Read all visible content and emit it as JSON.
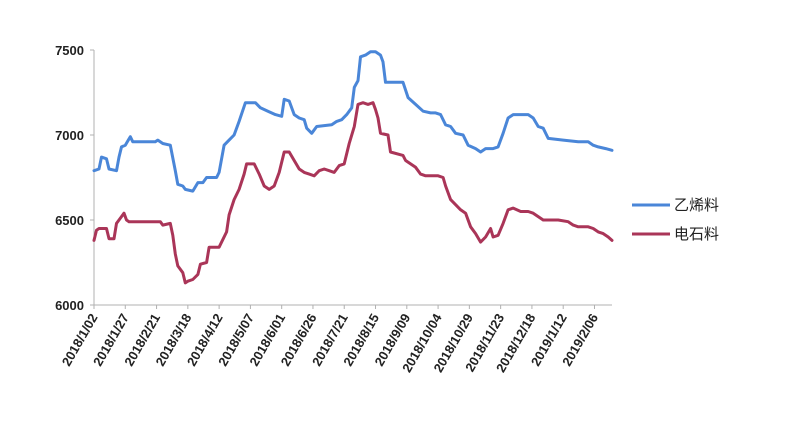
{
  "chart_data": {
    "type": "line",
    "title": "",
    "xlabel": "",
    "ylabel": "",
    "ylim": [
      6000,
      7500
    ],
    "yticks": [
      "6000",
      "6500",
      "7000",
      "7500"
    ],
    "xticks": [
      "2018/1/02",
      "2018/1/27",
      "2018/2/21",
      "2018/3/18",
      "2018/4/12",
      "2018/5/07",
      "2018/6/01",
      "2018/6/26",
      "2018/7/21",
      "2018/8/15",
      "2018/9/09",
      "2018/10/04",
      "2018/10/29",
      "2018/11/23",
      "2018/12/18",
      "2019/1/12",
      "2019/2/06"
    ],
    "xrange": [
      "2018-01-02",
      "2019-02-20"
    ],
    "grid": false,
    "legend_position": "right",
    "series": [
      {
        "name": "乙烯料",
        "color": "#4a86d8",
        "points": [
          [
            "2018-01-02",
            6790
          ],
          [
            "2018-01-06",
            6800
          ],
          [
            "2018-01-08",
            6870
          ],
          [
            "2018-01-12",
            6860
          ],
          [
            "2018-01-14",
            6800
          ],
          [
            "2018-01-20",
            6790
          ],
          [
            "2018-01-22",
            6870
          ],
          [
            "2018-01-24",
            6930
          ],
          [
            "2018-01-27",
            6940
          ],
          [
            "2018-01-31",
            6990
          ],
          [
            "2018-02-02",
            6960
          ],
          [
            "2018-02-20",
            6960
          ],
          [
            "2018-02-22",
            6970
          ],
          [
            "2018-02-26",
            6950
          ],
          [
            "2018-03-04",
            6940
          ],
          [
            "2018-03-08",
            6790
          ],
          [
            "2018-03-10",
            6710
          ],
          [
            "2018-03-14",
            6700
          ],
          [
            "2018-03-16",
            6680
          ],
          [
            "2018-03-22",
            6670
          ],
          [
            "2018-03-26",
            6720
          ],
          [
            "2018-03-30",
            6720
          ],
          [
            "2018-04-02",
            6750
          ],
          [
            "2018-04-10",
            6750
          ],
          [
            "2018-04-12",
            6780
          ],
          [
            "2018-04-16",
            6940
          ],
          [
            "2018-04-20",
            6970
          ],
          [
            "2018-04-24",
            7000
          ],
          [
            "2018-04-28",
            7080
          ],
          [
            "2018-05-03",
            7190
          ],
          [
            "2018-05-11",
            7190
          ],
          [
            "2018-05-15",
            7160
          ],
          [
            "2018-05-21",
            7140
          ],
          [
            "2018-05-27",
            7120
          ],
          [
            "2018-06-01",
            7110
          ],
          [
            "2018-06-03",
            7210
          ],
          [
            "2018-06-07",
            7200
          ],
          [
            "2018-06-11",
            7120
          ],
          [
            "2018-06-15",
            7100
          ],
          [
            "2018-06-19",
            7090
          ],
          [
            "2018-06-21",
            7040
          ],
          [
            "2018-06-25",
            7010
          ],
          [
            "2018-06-29",
            7050
          ],
          [
            "2018-07-11",
            7060
          ],
          [
            "2018-07-15",
            7080
          ],
          [
            "2018-07-19",
            7090
          ],
          [
            "2018-07-23",
            7120
          ],
          [
            "2018-07-27",
            7160
          ],
          [
            "2018-07-29",
            7280
          ],
          [
            "2018-08-01",
            7320
          ],
          [
            "2018-08-03",
            7460
          ],
          [
            "2018-08-07",
            7470
          ],
          [
            "2018-08-11",
            7490
          ],
          [
            "2018-08-15",
            7490
          ],
          [
            "2018-08-19",
            7470
          ],
          [
            "2018-08-21",
            7430
          ],
          [
            "2018-08-23",
            7310
          ],
          [
            "2018-09-06",
            7310
          ],
          [
            "2018-09-10",
            7220
          ],
          [
            "2018-09-16",
            7180
          ],
          [
            "2018-09-22",
            7140
          ],
          [
            "2018-09-28",
            7130
          ],
          [
            "2018-10-02",
            7130
          ],
          [
            "2018-10-06",
            7120
          ],
          [
            "2018-10-10",
            7060
          ],
          [
            "2018-10-14",
            7050
          ],
          [
            "2018-10-18",
            7010
          ],
          [
            "2018-10-24",
            7000
          ],
          [
            "2018-10-28",
            6940
          ],
          [
            "2018-11-03",
            6920
          ],
          [
            "2018-11-07",
            6900
          ],
          [
            "2018-11-11",
            6920
          ],
          [
            "2018-11-17",
            6920
          ],
          [
            "2018-11-21",
            6930
          ],
          [
            "2018-11-25",
            7010
          ],
          [
            "2018-11-29",
            7100
          ],
          [
            "2018-12-03",
            7120
          ],
          [
            "2018-12-15",
            7120
          ],
          [
            "2018-12-19",
            7100
          ],
          [
            "2018-12-23",
            7050
          ],
          [
            "2018-12-27",
            7040
          ],
          [
            "2018-12-31",
            6980
          ],
          [
            "2019-01-12",
            6970
          ],
          [
            "2019-01-24",
            6960
          ],
          [
            "2019-02-01",
            6960
          ],
          [
            "2019-02-05",
            6940
          ],
          [
            "2019-02-09",
            6930
          ],
          [
            "2019-02-15",
            6920
          ],
          [
            "2019-02-20",
            6910
          ]
        ]
      },
      {
        "name": "电石料",
        "color": "#aa3558",
        "points": [
          [
            "2018-01-02",
            6380
          ],
          [
            "2018-01-04",
            6440
          ],
          [
            "2018-01-06",
            6450
          ],
          [
            "2018-01-12",
            6450
          ],
          [
            "2018-01-14",
            6390
          ],
          [
            "2018-01-18",
            6390
          ],
          [
            "2018-01-20",
            6480
          ],
          [
            "2018-01-24",
            6520
          ],
          [
            "2018-01-26",
            6540
          ],
          [
            "2018-01-28",
            6500
          ],
          [
            "2018-01-30",
            6490
          ],
          [
            "2018-02-24",
            6490
          ],
          [
            "2018-02-26",
            6470
          ],
          [
            "2018-03-04",
            6480
          ],
          [
            "2018-03-06",
            6410
          ],
          [
            "2018-03-08",
            6300
          ],
          [
            "2018-03-10",
            6230
          ],
          [
            "2018-03-14",
            6190
          ],
          [
            "2018-03-16",
            6130
          ],
          [
            "2018-03-18",
            6140
          ],
          [
            "2018-03-22",
            6150
          ],
          [
            "2018-03-26",
            6180
          ],
          [
            "2018-03-28",
            6240
          ],
          [
            "2018-04-02",
            6250
          ],
          [
            "2018-04-04",
            6340
          ],
          [
            "2018-04-12",
            6340
          ],
          [
            "2018-04-18",
            6430
          ],
          [
            "2018-04-20",
            6530
          ],
          [
            "2018-04-24",
            6620
          ],
          [
            "2018-04-28",
            6680
          ],
          [
            "2018-05-02",
            6770
          ],
          [
            "2018-05-04",
            6830
          ],
          [
            "2018-05-10",
            6830
          ],
          [
            "2018-05-14",
            6770
          ],
          [
            "2018-05-18",
            6700
          ],
          [
            "2018-05-22",
            6680
          ],
          [
            "2018-05-26",
            6700
          ],
          [
            "2018-05-30",
            6780
          ],
          [
            "2018-06-03",
            6900
          ],
          [
            "2018-06-07",
            6900
          ],
          [
            "2018-06-11",
            6850
          ],
          [
            "2018-06-15",
            6800
          ],
          [
            "2018-06-19",
            6780
          ],
          [
            "2018-06-23",
            6770
          ],
          [
            "2018-06-27",
            6760
          ],
          [
            "2018-07-01",
            6790
          ],
          [
            "2018-07-05",
            6800
          ],
          [
            "2018-07-09",
            6790
          ],
          [
            "2018-07-13",
            6780
          ],
          [
            "2018-07-17",
            6820
          ],
          [
            "2018-07-21",
            6830
          ],
          [
            "2018-07-25",
            6950
          ],
          [
            "2018-07-29",
            7050
          ],
          [
            "2018-08-01",
            7180
          ],
          [
            "2018-08-05",
            7190
          ],
          [
            "2018-08-09",
            7180
          ],
          [
            "2018-08-13",
            7190
          ],
          [
            "2018-08-15",
            7150
          ],
          [
            "2018-08-17",
            7100
          ],
          [
            "2018-08-19",
            7010
          ],
          [
            "2018-08-25",
            7000
          ],
          [
            "2018-08-27",
            6900
          ],
          [
            "2018-09-06",
            6880
          ],
          [
            "2018-09-08",
            6850
          ],
          [
            "2018-09-12",
            6830
          ],
          [
            "2018-09-16",
            6810
          ],
          [
            "2018-09-20",
            6770
          ],
          [
            "2018-09-24",
            6760
          ],
          [
            "2018-10-04",
            6760
          ],
          [
            "2018-10-08",
            6750
          ],
          [
            "2018-10-10",
            6700
          ],
          [
            "2018-10-14",
            6620
          ],
          [
            "2018-10-18",
            6590
          ],
          [
            "2018-10-22",
            6560
          ],
          [
            "2018-10-26",
            6540
          ],
          [
            "2018-10-30",
            6460
          ],
          [
            "2018-11-03",
            6420
          ],
          [
            "2018-11-07",
            6370
          ],
          [
            "2018-11-11",
            6400
          ],
          [
            "2018-11-15",
            6450
          ],
          [
            "2018-11-17",
            6400
          ],
          [
            "2018-11-21",
            6410
          ],
          [
            "2018-11-25",
            6480
          ],
          [
            "2018-11-29",
            6560
          ],
          [
            "2018-12-03",
            6570
          ],
          [
            "2018-12-09",
            6550
          ],
          [
            "2018-12-15",
            6550
          ],
          [
            "2018-12-19",
            6540
          ],
          [
            "2018-12-23",
            6520
          ],
          [
            "2018-12-27",
            6500
          ],
          [
            "2019-01-08",
            6500
          ],
          [
            "2019-01-16",
            6490
          ],
          [
            "2019-01-20",
            6470
          ],
          [
            "2019-01-24",
            6460
          ],
          [
            "2019-02-01",
            6460
          ],
          [
            "2019-02-05",
            6450
          ],
          [
            "2019-02-09",
            6430
          ],
          [
            "2019-02-13",
            6420
          ],
          [
            "2019-02-17",
            6400
          ],
          [
            "2019-02-20",
            6380
          ]
        ]
      }
    ]
  }
}
